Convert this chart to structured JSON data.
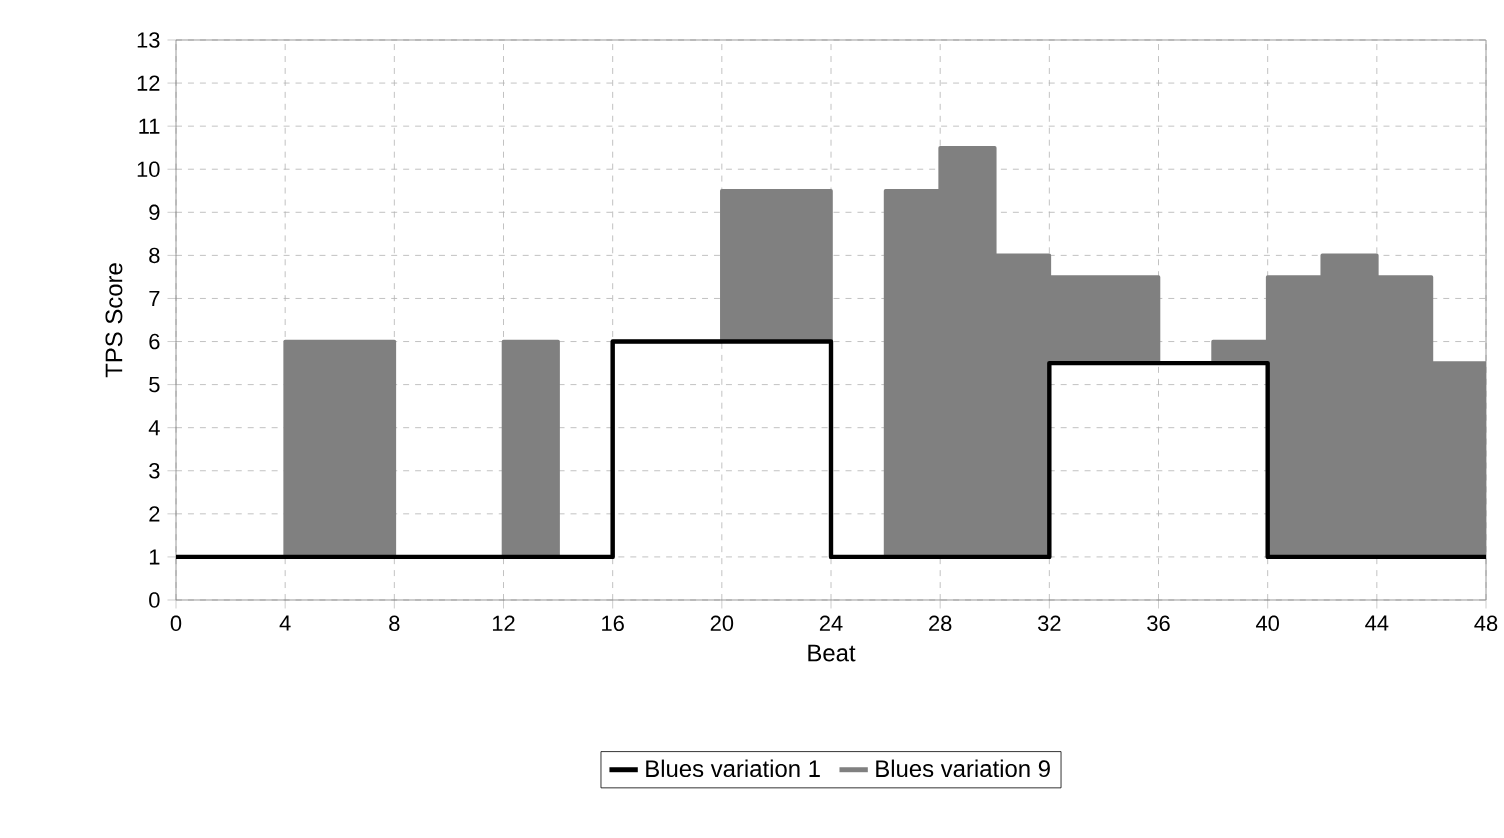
{
  "chart_data": {
    "type": "step",
    "xlabel": "Beat",
    "ylabel": "TPS Score",
    "x": [
      0,
      2,
      4,
      6,
      8,
      10,
      12,
      14,
      16,
      18,
      20,
      22,
      24,
      26,
      28,
      30,
      32,
      34,
      36,
      38,
      40,
      42,
      44,
      46,
      48
    ],
    "series": [
      {
        "name": "Blues variation 1",
        "color": "#000000",
        "values": [
          1,
          1,
          1,
          1,
          1,
          1,
          1,
          1,
          6,
          6,
          6,
          6,
          1,
          1,
          1,
          1,
          5.5,
          5.5,
          5.5,
          5.5,
          1,
          1,
          1,
          1,
          1
        ]
      },
      {
        "name": "Blues variation 9",
        "color": "#808080",
        "type": "area",
        "values": [
          1,
          1,
          6,
          6,
          1,
          1,
          6,
          1,
          6,
          6,
          9.5,
          9.5,
          1,
          9.5,
          10.5,
          8,
          7.5,
          7.5,
          5.5,
          6,
          7.5,
          8,
          7.5,
          5.5,
          5.5
        ]
      }
    ],
    "xlim": [
      0,
      48
    ],
    "ylim": [
      0,
      13
    ],
    "xticks": [
      0,
      4,
      8,
      12,
      16,
      20,
      24,
      28,
      32,
      36,
      40,
      44,
      48
    ],
    "yticks": [
      0,
      1,
      2,
      3,
      4,
      5,
      6,
      7,
      8,
      9,
      10,
      11,
      12,
      13
    ],
    "grid": true,
    "legend": "bottom",
    "line_style": "solid"
  }
}
